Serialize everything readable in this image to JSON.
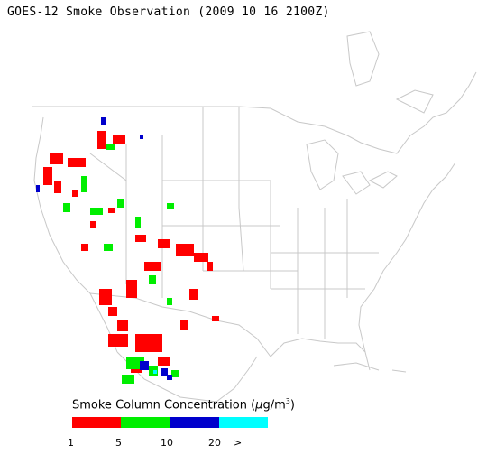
{
  "title": "GOES-12 Smoke Observation (2009 10 16  2100Z)",
  "legend": {
    "title_text": "Smoke Column Concentration (",
    "unit_mu": "μ",
    "unit_rest": "g/m",
    "unit_sup": "3",
    "close_paren": ")",
    "colors": [
      "#ff0000",
      "#00ee00",
      "#0000cc",
      "#00ffff"
    ],
    "tick_labels": [
      "1",
      "5",
      "10",
      "20",
      ">"
    ]
  },
  "map": {
    "background_color": "#ffffff",
    "boundary_color": "#c8c8c8",
    "smoke_regions": [
      {
        "name": "northern-california-coast",
        "level": "1-5",
        "color": "#ff0000"
      },
      {
        "name": "southern-california",
        "level": "1-5",
        "color": "#ff0000"
      },
      {
        "name": "baja-california",
        "level": "5-20",
        "color": "#00ee00"
      },
      {
        "name": "nevada-arizona",
        "level": "1-10",
        "color": "#00ee00"
      },
      {
        "name": "mexico-north",
        "level": "10-20",
        "color": "#0000cc"
      }
    ]
  }
}
